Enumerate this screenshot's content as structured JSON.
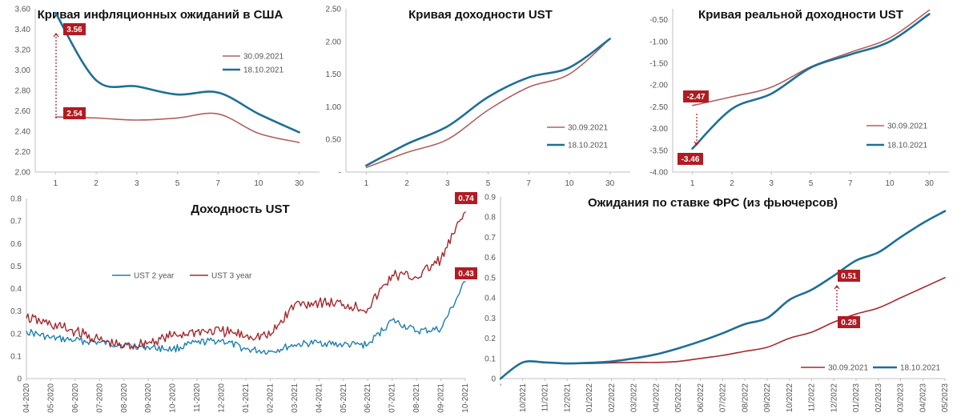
{
  "colors": {
    "maroon": "#a5282c",
    "teal": "#1f6f96",
    "series_old": "#b0605f",
    "annotation_bg": "#b01c22",
    "axis": "#bfbfbf"
  },
  "chart_data": [
    {
      "id": "inflation",
      "type": "line",
      "title": "Кривая инфляционных ожиданий в США",
      "categories": [
        "1",
        "2",
        "3",
        "5",
        "7",
        "10",
        "30"
      ],
      "ylim": [
        2.0,
        3.6
      ],
      "yticks": [
        "2.00",
        "2.20",
        "2.40",
        "2.60",
        "2.80",
        "3.00",
        "3.20",
        "3.40",
        "3.60"
      ],
      "series": [
        {
          "name": "30.09.2021",
          "values": [
            2.54,
            2.53,
            2.51,
            2.53,
            2.57,
            2.38,
            2.29
          ]
        },
        {
          "name": "18.10.2021",
          "values": [
            3.56,
            2.9,
            2.84,
            2.76,
            2.78,
            2.57,
            2.39
          ]
        }
      ],
      "annotations": [
        {
          "text": "3.56"
        },
        {
          "text": "2.54"
        }
      ]
    },
    {
      "id": "ust-curve",
      "type": "line",
      "title": "Кривая доходности UST",
      "categories": [
        "1",
        "2",
        "3",
        "5",
        "7",
        "10",
        "30"
      ],
      "ylim": [
        0,
        2.5
      ],
      "yticks": [
        "-",
        "0.50",
        "1.00",
        "1.50",
        "2.00",
        "2.50"
      ],
      "series": [
        {
          "name": "30.09.2021",
          "values": [
            0.07,
            0.3,
            0.5,
            0.95,
            1.3,
            1.5,
            2.04
          ]
        },
        {
          "name": "18.10.2021",
          "values": [
            0.1,
            0.43,
            0.7,
            1.15,
            1.45,
            1.6,
            2.04
          ]
        }
      ]
    },
    {
      "id": "real-curve",
      "type": "line",
      "title": "Кривая реальной доходности UST",
      "categories": [
        "1",
        "2",
        "3",
        "5",
        "7",
        "10",
        "30"
      ],
      "ylim": [
        -4.0,
        -0.25
      ],
      "yticks": [
        "-0.50",
        "-1.00",
        "-1.50",
        "-2.00",
        "-2.50",
        "-3.00",
        "-3.50",
        "-4.00"
      ],
      "series": [
        {
          "name": "30.09.2021",
          "values": [
            -2.47,
            -2.27,
            -2.05,
            -1.58,
            -1.25,
            -0.92,
            -0.28
          ]
        },
        {
          "name": "18.10.2021",
          "values": [
            -3.46,
            -2.55,
            -2.2,
            -1.6,
            -1.3,
            -1.0,
            -0.37
          ]
        }
      ],
      "annotations": [
        {
          "text": "-2.47"
        },
        {
          "text": "-3.46"
        }
      ]
    },
    {
      "id": "ust-yield",
      "type": "line",
      "title": "Доходность UST",
      "categories": [
        "04-2020",
        "05-2020",
        "06-2020",
        "07-2020",
        "08-2020",
        "09-2020",
        "10-2020",
        "11-2020",
        "12-2020",
        "01-2021",
        "02-2021",
        "03-2021",
        "04-2021",
        "05-2021",
        "06-2021",
        "07-2021",
        "08-2021",
        "09-2021",
        "10-2021"
      ],
      "ylim": [
        0,
        0.8
      ],
      "yticks": [
        "0",
        "0.1",
        "0.2",
        "0.3",
        "0.4",
        "0.5",
        "0.6",
        "0.7",
        "0.8"
      ],
      "series": [
        {
          "name": "UST 2 year",
          "values": [
            0.21,
            0.18,
            0.17,
            0.16,
            0.15,
            0.14,
            0.13,
            0.16,
            0.17,
            0.13,
            0.12,
            0.15,
            0.16,
            0.15,
            0.15,
            0.26,
            0.21,
            0.22,
            0.43
          ]
        },
        {
          "name": "UST 3 year",
          "values": [
            0.27,
            0.24,
            0.21,
            0.17,
            0.14,
            0.16,
            0.19,
            0.21,
            0.21,
            0.19,
            0.19,
            0.33,
            0.34,
            0.33,
            0.31,
            0.46,
            0.45,
            0.53,
            0.74
          ]
        }
      ],
      "annotations": [
        {
          "text": "0.74"
        },
        {
          "text": "0.43"
        }
      ]
    },
    {
      "id": "fed",
      "type": "line",
      "title": "Ожидания по ставке ФРС (из фьючерсов)",
      "categories": [
        "-",
        "10/2021",
        "11/2021",
        "12/2021",
        "01/2022",
        "02/2022",
        "03/2022",
        "04/2022",
        "05/2022",
        "06/2022",
        "07/2022",
        "08/2022",
        "09/2022",
        "10/2022",
        "11/2022",
        "12/2022",
        "01/2023",
        "02/2023",
        "03/2023",
        "04/2023",
        "05/2023"
      ],
      "ylim": [
        0,
        0.9
      ],
      "yticks": [
        "0",
        "0.1",
        "0.2",
        "0.3",
        "0.4",
        "0.5",
        "0.6",
        "0.7",
        "0.8",
        "0.9"
      ],
      "series": [
        {
          "name": "30.09.2021",
          "values": [
            0.0,
            0.08,
            0.08,
            0.075,
            0.075,
            0.078,
            0.08,
            0.08,
            0.085,
            0.1,
            0.115,
            0.135,
            0.155,
            0.2,
            0.23,
            0.28,
            0.32,
            0.35,
            0.4,
            0.45,
            0.5
          ]
        },
        {
          "name": "18.10.2021",
          "values": [
            0.0,
            0.08,
            0.08,
            0.075,
            0.078,
            0.085,
            0.1,
            0.12,
            0.15,
            0.185,
            0.225,
            0.27,
            0.3,
            0.39,
            0.44,
            0.51,
            0.585,
            0.625,
            0.7,
            0.77,
            0.83
          ]
        }
      ],
      "annotations": [
        {
          "text": "0.51"
        },
        {
          "text": "0.28"
        }
      ]
    }
  ]
}
